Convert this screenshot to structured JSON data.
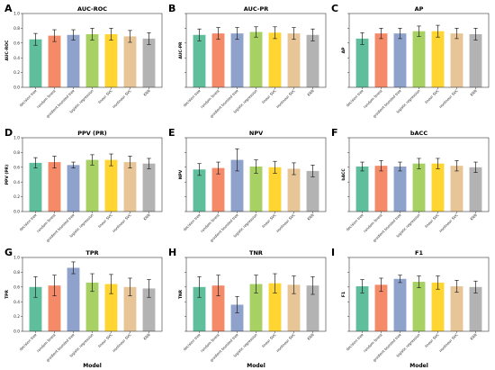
{
  "figure": {
    "xlabel": "Model"
  },
  "chart_data": [
    {
      "type": "bar",
      "letter": "A",
      "title": "AUC-ROC",
      "ylabel": "AUC-ROC",
      "ylim": [
        0,
        1.0
      ],
      "ticks": [
        0.0,
        0.2,
        0.4,
        0.6,
        0.8,
        1.0
      ],
      "show_tick_labels": true,
      "categories": [
        "decision tree",
        "random forest",
        "gradient boosted tree",
        "logistic regression",
        "linear SVC",
        "nonlinear SVC",
        "KNN"
      ],
      "values": [
        0.65,
        0.7,
        0.71,
        0.72,
        0.72,
        0.69,
        0.66
      ],
      "errors": [
        0.08,
        0.08,
        0.07,
        0.08,
        0.08,
        0.08,
        0.08
      ]
    },
    {
      "type": "bar",
      "letter": "B",
      "title": "AUC-PR",
      "ylabel": "AUC-PR",
      "ylim": [
        0,
        1.0
      ],
      "ticks": [
        0.0,
        0.2,
        0.4,
        0.6,
        0.8,
        1.0
      ],
      "show_tick_labels": false,
      "categories": [
        "decision tree",
        "random forest",
        "gradient boosted tree",
        "logistic regression",
        "linear SVC",
        "nonlinear SVC",
        "KNN"
      ],
      "values": [
        0.71,
        0.73,
        0.73,
        0.75,
        0.74,
        0.73,
        0.71
      ],
      "errors": [
        0.08,
        0.08,
        0.08,
        0.07,
        0.08,
        0.08,
        0.08
      ]
    },
    {
      "type": "bar",
      "letter": "C",
      "title": "AP",
      "ylabel": "AP",
      "ylim": [
        0,
        1.0
      ],
      "ticks": [
        0.0,
        0.2,
        0.4,
        0.6,
        0.8,
        1.0
      ],
      "show_tick_labels": false,
      "categories": [
        "decision tree",
        "random forest",
        "gradient boosted tree",
        "logistic regression",
        "linear SVC",
        "nonlinear SVC",
        "KNN"
      ],
      "values": [
        0.66,
        0.73,
        0.73,
        0.76,
        0.76,
        0.73,
        0.72
      ],
      "errors": [
        0.08,
        0.07,
        0.07,
        0.07,
        0.08,
        0.07,
        0.08
      ]
    },
    {
      "type": "bar",
      "letter": "D",
      "title": "PPV (PR)",
      "ylabel": "PPV (PR)",
      "ylim": [
        0,
        1.0
      ],
      "ticks": [
        0.0,
        0.2,
        0.4,
        0.6,
        0.8,
        1.0
      ],
      "show_tick_labels": true,
      "categories": [
        "decision tree",
        "random forest",
        "gradient boosted tree",
        "logistic regression",
        "linear SVC",
        "nonlinear SVC",
        "KNN"
      ],
      "values": [
        0.66,
        0.67,
        0.63,
        0.7,
        0.7,
        0.67,
        0.65
      ],
      "errors": [
        0.07,
        0.08,
        0.04,
        0.07,
        0.08,
        0.08,
        0.07
      ]
    },
    {
      "type": "bar",
      "letter": "E",
      "title": "NPV",
      "ylabel": "NPV",
      "ylim": [
        0,
        1.0
      ],
      "ticks": [
        0.0,
        0.2,
        0.4,
        0.6,
        0.8,
        1.0
      ],
      "show_tick_labels": false,
      "categories": [
        "decision tree",
        "random forest",
        "gradient boosted tree",
        "logistic regression",
        "linear SVC",
        "nonlinear SVC",
        "KNN"
      ],
      "values": [
        0.57,
        0.59,
        0.7,
        0.61,
        0.6,
        0.58,
        0.55
      ],
      "errors": [
        0.08,
        0.08,
        0.15,
        0.09,
        0.08,
        0.08,
        0.08
      ]
    },
    {
      "type": "bar",
      "letter": "F",
      "title": "bACC",
      "ylabel": "bACC",
      "ylim": [
        0,
        1.0
      ],
      "ticks": [
        0.0,
        0.2,
        0.4,
        0.6,
        0.8,
        1.0
      ],
      "show_tick_labels": false,
      "categories": [
        "decision tree",
        "random forest",
        "gradient boosted tree",
        "logistic regression",
        "linear SVC",
        "nonlinear SVC",
        "KNN"
      ],
      "values": [
        0.61,
        0.62,
        0.61,
        0.65,
        0.65,
        0.62,
        0.6
      ],
      "errors": [
        0.06,
        0.07,
        0.06,
        0.07,
        0.07,
        0.07,
        0.07
      ]
    },
    {
      "type": "bar",
      "letter": "G",
      "title": "TPR",
      "ylabel": "TPR",
      "ylim": [
        0,
        1.0
      ],
      "ticks": [
        0.0,
        0.2,
        0.4,
        0.6,
        0.8,
        1.0
      ],
      "show_tick_labels": true,
      "categories": [
        "decision tree",
        "random forest",
        "gradient boosted tree",
        "logistic regression",
        "linear SVC",
        "nonlinear SVC",
        "KNN"
      ],
      "values": [
        0.6,
        0.62,
        0.86,
        0.66,
        0.64,
        0.6,
        0.58
      ],
      "errors": [
        0.14,
        0.14,
        0.08,
        0.12,
        0.13,
        0.12,
        0.12
      ]
    },
    {
      "type": "bar",
      "letter": "H",
      "title": "TNR",
      "ylabel": "TNR",
      "ylim": [
        0,
        1.0
      ],
      "ticks": [
        0.0,
        0.2,
        0.4,
        0.6,
        0.8,
        1.0
      ],
      "show_tick_labels": false,
      "categories": [
        "decision tree",
        "random forest",
        "gradient boosted tree",
        "logistic regression",
        "linear SVC",
        "nonlinear SVC",
        "KNN"
      ],
      "values": [
        0.6,
        0.62,
        0.36,
        0.64,
        0.65,
        0.63,
        0.62
      ],
      "errors": [
        0.14,
        0.14,
        0.11,
        0.12,
        0.13,
        0.12,
        0.12
      ]
    },
    {
      "type": "bar",
      "letter": "I",
      "title": "F1",
      "ylabel": "F1",
      "ylim": [
        0,
        1.0
      ],
      "ticks": [
        0.0,
        0.2,
        0.4,
        0.6,
        0.8,
        1.0
      ],
      "show_tick_labels": false,
      "categories": [
        "decision tree",
        "random forest",
        "gradient boosted tree",
        "logistic regression",
        "linear SVC",
        "nonlinear SVC",
        "KNN"
      ],
      "values": [
        0.61,
        0.63,
        0.71,
        0.67,
        0.66,
        0.61,
        0.6
      ],
      "errors": [
        0.09,
        0.09,
        0.05,
        0.08,
        0.09,
        0.08,
        0.08
      ]
    }
  ],
  "colors": [
    "#5fbe9c",
    "#f58a68",
    "#8ea2cc",
    "#a7d163",
    "#ffd531",
    "#e7c596",
    "#b3b3b3"
  ]
}
